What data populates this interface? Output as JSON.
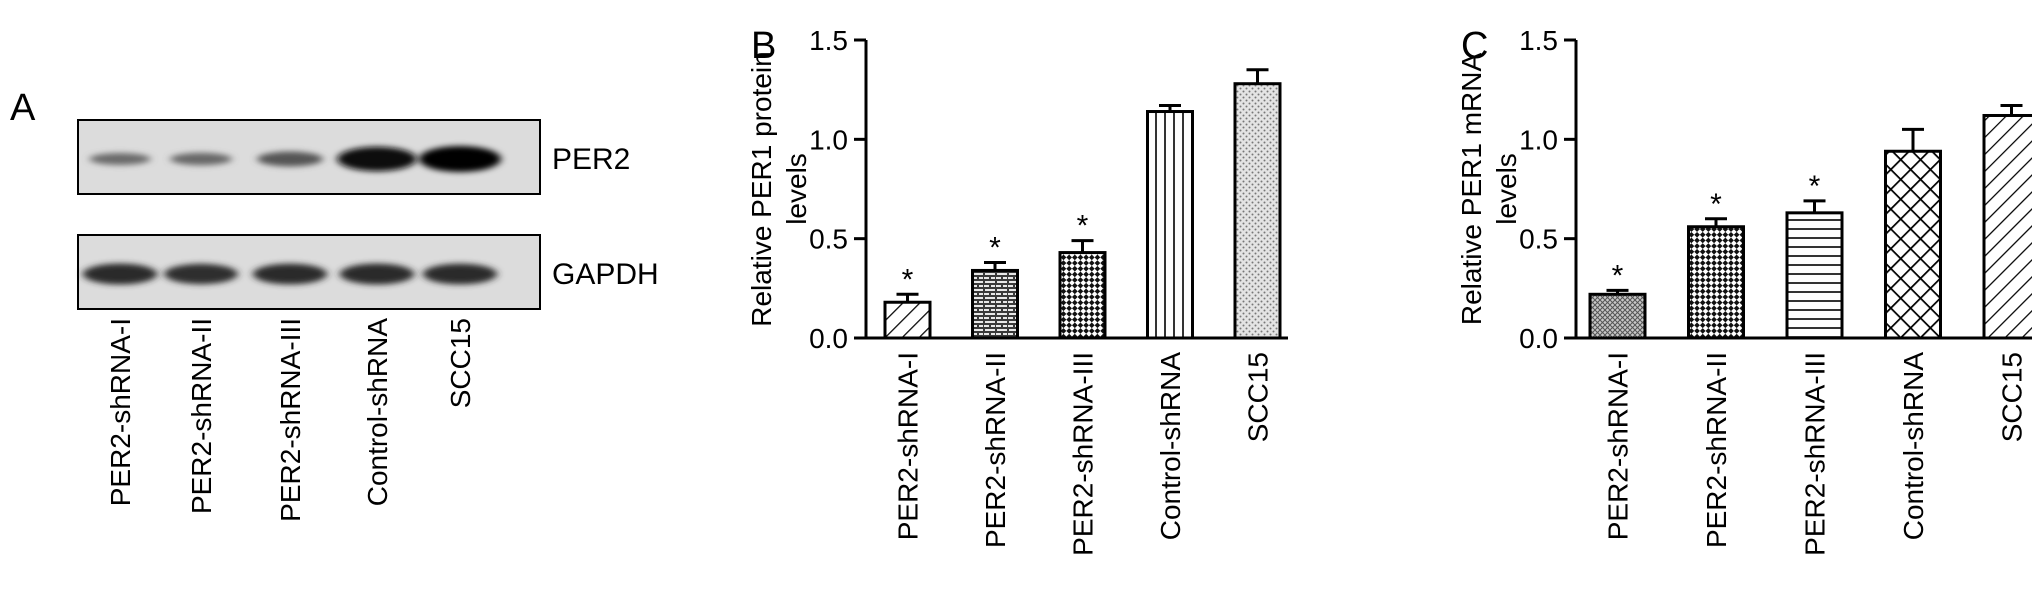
{
  "panel_a": {
    "letter": "A",
    "blots": [
      {
        "label": "PER2",
        "intensities": [
          0.3,
          0.32,
          0.45,
          0.92,
          1.0
        ]
      },
      {
        "label": "GAPDH",
        "intensities": [
          0.75,
          0.72,
          0.74,
          0.75,
          0.74
        ]
      }
    ],
    "lanes": [
      "PER2-shRNA-I",
      "PER2-shRNA-II",
      "PER2-shRNA-III",
      "Control-shRNA",
      "SCC15"
    ]
  },
  "chart_data": [
    {
      "type": "bar",
      "panel": "B",
      "ylabel": [
        "Relative PER1 protein",
        "levels"
      ],
      "categories": [
        "PER2-shRNA-I",
        "PER2-shRNA-II",
        "PER2-shRNA-III",
        "Control-shRNA",
        "SCC15"
      ],
      "values": [
        0.18,
        0.34,
        0.43,
        1.14,
        1.28
      ],
      "errors": [
        0.04,
        0.04,
        0.06,
        0.03,
        0.07
      ],
      "significance": [
        "*",
        "*",
        "*",
        "",
        ""
      ],
      "patterns": [
        "diagonal-lines",
        "bricks",
        "checker",
        "vertical-lines",
        "dots"
      ],
      "ylim": [
        0.0,
        1.5
      ],
      "yticks": [
        "0.0",
        "0.5",
        "1.0",
        "1.5"
      ]
    },
    {
      "type": "bar",
      "panel": "C",
      "ylabel": [
        "Relative PER1 mRNA",
        "levels"
      ],
      "categories": [
        "PER2-shRNA-I",
        "PER2-shRNA-II",
        "PER2-shRNA-III",
        "Control-shRNA",
        "SCC15"
      ],
      "values": [
        0.22,
        0.56,
        0.63,
        0.94,
        1.12
      ],
      "errors": [
        0.02,
        0.04,
        0.06,
        0.11,
        0.05
      ],
      "significance": [
        "*",
        "*",
        "*",
        "",
        ""
      ],
      "patterns": [
        "fine-crosshatch",
        "checker",
        "horizontal-lines",
        "crosshatch",
        "diagonal-lines"
      ],
      "ylim": [
        0.0,
        1.5
      ],
      "yticks": [
        "0.0",
        "0.5",
        "1.0",
        "1.5"
      ]
    }
  ]
}
